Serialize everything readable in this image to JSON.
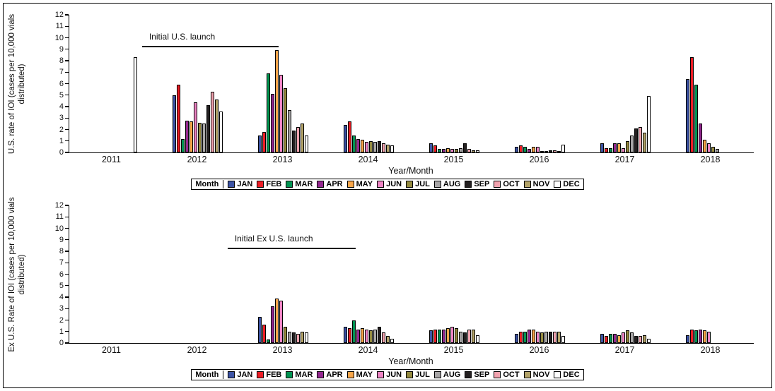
{
  "figure": {
    "months": [
      "JAN",
      "FEB",
      "MAR",
      "APR",
      "MAY",
      "JUN",
      "JUL",
      "AUG",
      "SEP",
      "OCT",
      "NOV",
      "DEC"
    ],
    "month_colors": {
      "JAN": "#3c53a4",
      "FEB": "#ed1c24",
      "MAR": "#009351",
      "APR": "#93278f",
      "MAY": "#f9a64a",
      "JUN": "#ef85c5",
      "JUL": "#948a3f",
      "AUG": "#a7a5a6",
      "SEP": "#231f20",
      "OCT": "#f2a3af",
      "NOV": "#b3a369",
      "DEC": "#ffffff"
    },
    "legend_title": "Month",
    "xlabel": "Year/Month"
  },
  "chart_data": [
    {
      "type": "bar",
      "title": "",
      "ylabel": "U.S. rate of IOI (cases per 10,000 vials distributed)",
      "xlabel": "Year/Month",
      "ylim": [
        0,
        12
      ],
      "ytick_step": 1,
      "grid": false,
      "legend_position": "bottom",
      "categories": [
        "2011",
        "2012",
        "2013",
        "2014",
        "2015",
        "2016",
        "2017",
        "2018"
      ],
      "annotation": {
        "text": "Initial U.S. launch",
        "x_from_year": 2011.35,
        "x_to_year": 2012.95,
        "y_value": 9.3
      },
      "series": [
        {
          "name": "JAN",
          "values": [
            0,
            5.0,
            1.5,
            2.4,
            0.8,
            0.5,
            0.8,
            6.4
          ]
        },
        {
          "name": "FEB",
          "values": [
            0,
            5.9,
            1.8,
            2.7,
            0.6,
            0.6,
            0.4,
            8.3
          ]
        },
        {
          "name": "MAR",
          "values": [
            0,
            1.2,
            6.9,
            1.5,
            0.3,
            0.5,
            0.4,
            5.9
          ]
        },
        {
          "name": "APR",
          "values": [
            0,
            2.8,
            5.1,
            1.2,
            0.3,
            0.3,
            0.8,
            2.5
          ]
        },
        {
          "name": "MAY",
          "values": [
            0,
            2.7,
            8.9,
            1.1,
            0.4,
            0.5,
            0.8,
            1.1
          ]
        },
        {
          "name": "JUN",
          "values": [
            0,
            4.4,
            6.8,
            0.9,
            0.3,
            0.5,
            0.4,
            0.8
          ]
        },
        {
          "name": "JUL",
          "values": [
            0,
            2.6,
            5.6,
            1.0,
            0.3,
            0.1,
            1.0,
            0.5
          ]
        },
        {
          "name": "AUG",
          "values": [
            0,
            2.5,
            3.7,
            0.9,
            0.4,
            0.1,
            1.5,
            0.3
          ]
        },
        {
          "name": "SEP",
          "values": [
            0,
            4.1,
            1.9,
            1.0,
            0.8,
            0.2,
            2.1,
            0
          ]
        },
        {
          "name": "OCT",
          "values": [
            0,
            5.3,
            2.2,
            0.8,
            0.3,
            0.2,
            2.2,
            0
          ]
        },
        {
          "name": "NOV",
          "values": [
            0,
            4.6,
            2.5,
            0.7,
            0.2,
            0.1,
            1.7,
            0
          ]
        },
        {
          "name": "DEC",
          "values": [
            8.3,
            3.6,
            1.5,
            0.6,
            0.2,
            0.7,
            4.9,
            0
          ]
        }
      ]
    },
    {
      "type": "bar",
      "title": "",
      "ylabel": "Ex U.S. Rate of IOI (cases per 10,000 vials distributed)",
      "xlabel": "Year/Month",
      "ylim": [
        0,
        12
      ],
      "ytick_step": 1,
      "grid": false,
      "legend_position": "bottom",
      "categories": [
        "2011",
        "2012",
        "2013",
        "2014",
        "2015",
        "2016",
        "2017",
        "2018"
      ],
      "annotation": {
        "text": "Initial Ex U.S. launch",
        "x_from_year": 2012.35,
        "x_to_year": 2013.85,
        "y_value": 8.3
      },
      "series": [
        {
          "name": "JAN",
          "values": [
            0,
            0,
            2.3,
            1.4,
            1.1,
            0.8,
            0.8,
            0.7
          ]
        },
        {
          "name": "FEB",
          "values": [
            0,
            0,
            1.6,
            1.3,
            1.2,
            1.0,
            0.6,
            1.2
          ]
        },
        {
          "name": "MAR",
          "values": [
            0,
            0,
            0.3,
            2.0,
            1.2,
            1.0,
            0.8,
            1.1
          ]
        },
        {
          "name": "APR",
          "values": [
            0,
            0,
            3.2,
            1.2,
            1.2,
            1.2,
            0.8,
            1.2
          ]
        },
        {
          "name": "MAY",
          "values": [
            0,
            0,
            3.9,
            1.3,
            1.3,
            1.2,
            0.7,
            1.1
          ]
        },
        {
          "name": "JUN",
          "values": [
            0,
            0,
            3.7,
            1.2,
            1.4,
            1.0,
            0.9,
            1.0
          ]
        },
        {
          "name": "JUL",
          "values": [
            0,
            0,
            1.4,
            1.1,
            1.3,
            0.9,
            1.1,
            0
          ]
        },
        {
          "name": "AUG",
          "values": [
            0,
            0,
            1.0,
            1.2,
            1.0,
            1.0,
            0.9,
            0
          ]
        },
        {
          "name": "SEP",
          "values": [
            0,
            0,
            0.9,
            1.4,
            0.9,
            1.0,
            0.6,
            0
          ]
        },
        {
          "name": "OCT",
          "values": [
            0,
            0,
            0.8,
            0.9,
            1.2,
            1.0,
            0.6,
            0
          ]
        },
        {
          "name": "NOV",
          "values": [
            0,
            0,
            1.0,
            0.6,
            1.2,
            1.0,
            0.7,
            0
          ]
        },
        {
          "name": "DEC",
          "values": [
            0,
            0,
            0.9,
            0.4,
            0.7,
            0.6,
            0.4,
            0
          ]
        }
      ]
    }
  ]
}
